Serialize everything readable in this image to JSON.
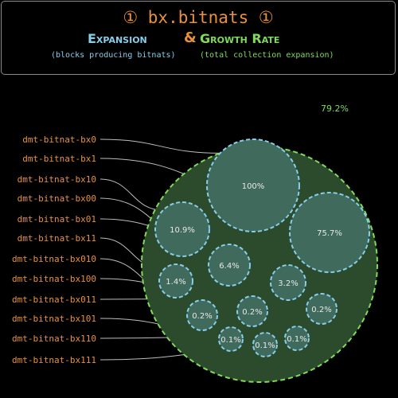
{
  "header": {
    "title": "① bx.bitnats ①",
    "expansion_label": "Expansion",
    "amp": "&",
    "growth_label": "Growth Rate",
    "expansion_note": "(blocks producing bitnats)",
    "growth_note": "(total collection expansion)"
  },
  "growth_rate": "79.2%",
  "colors": {
    "accent": "#e8913a",
    "expansion": "#87ceeb",
    "growth": "#7fdc5a",
    "fill": "#2c4a2c",
    "bubble": "#3f6a5c"
  },
  "chart_data": {
    "type": "bubble",
    "items": [
      {
        "label": "dmt-bitnat-bx0",
        "value": "100%",
        "value_num": 100
      },
      {
        "label": "dmt-bitnat-bx1",
        "value": "75.7%",
        "value_num": 75.7
      },
      {
        "label": "dmt-bitnat-bx10",
        "value": "10.9%",
        "value_num": 10.9
      },
      {
        "label": "dmt-bitnat-bx00",
        "value": "6.4%",
        "value_num": 6.4
      },
      {
        "label": "dmt-bitnat-bx01",
        "value": "3.2%",
        "value_num": 3.2
      },
      {
        "label": "dmt-bitnat-bx11",
        "value": "1.4%",
        "value_num": 1.4
      },
      {
        "label": "dmt-bitnat-bx010",
        "value": "0.2%",
        "value_num": 0.2
      },
      {
        "label": "dmt-bitnat-bx100",
        "value": "0.2%",
        "value_num": 0.2
      },
      {
        "label": "dmt-bitnat-bx011",
        "value": "0.2%",
        "value_num": 0.2
      },
      {
        "label": "dmt-bitnat-bx101",
        "value": "0.1%",
        "value_num": 0.1
      },
      {
        "label": "dmt-bitnat-bx110",
        "value": "0.1%",
        "value_num": 0.1
      },
      {
        "label": "dmt-bitnat-bx111",
        "value": "0.1%",
        "value_num": 0.1
      }
    ],
    "growth_rate": "79.2%"
  }
}
